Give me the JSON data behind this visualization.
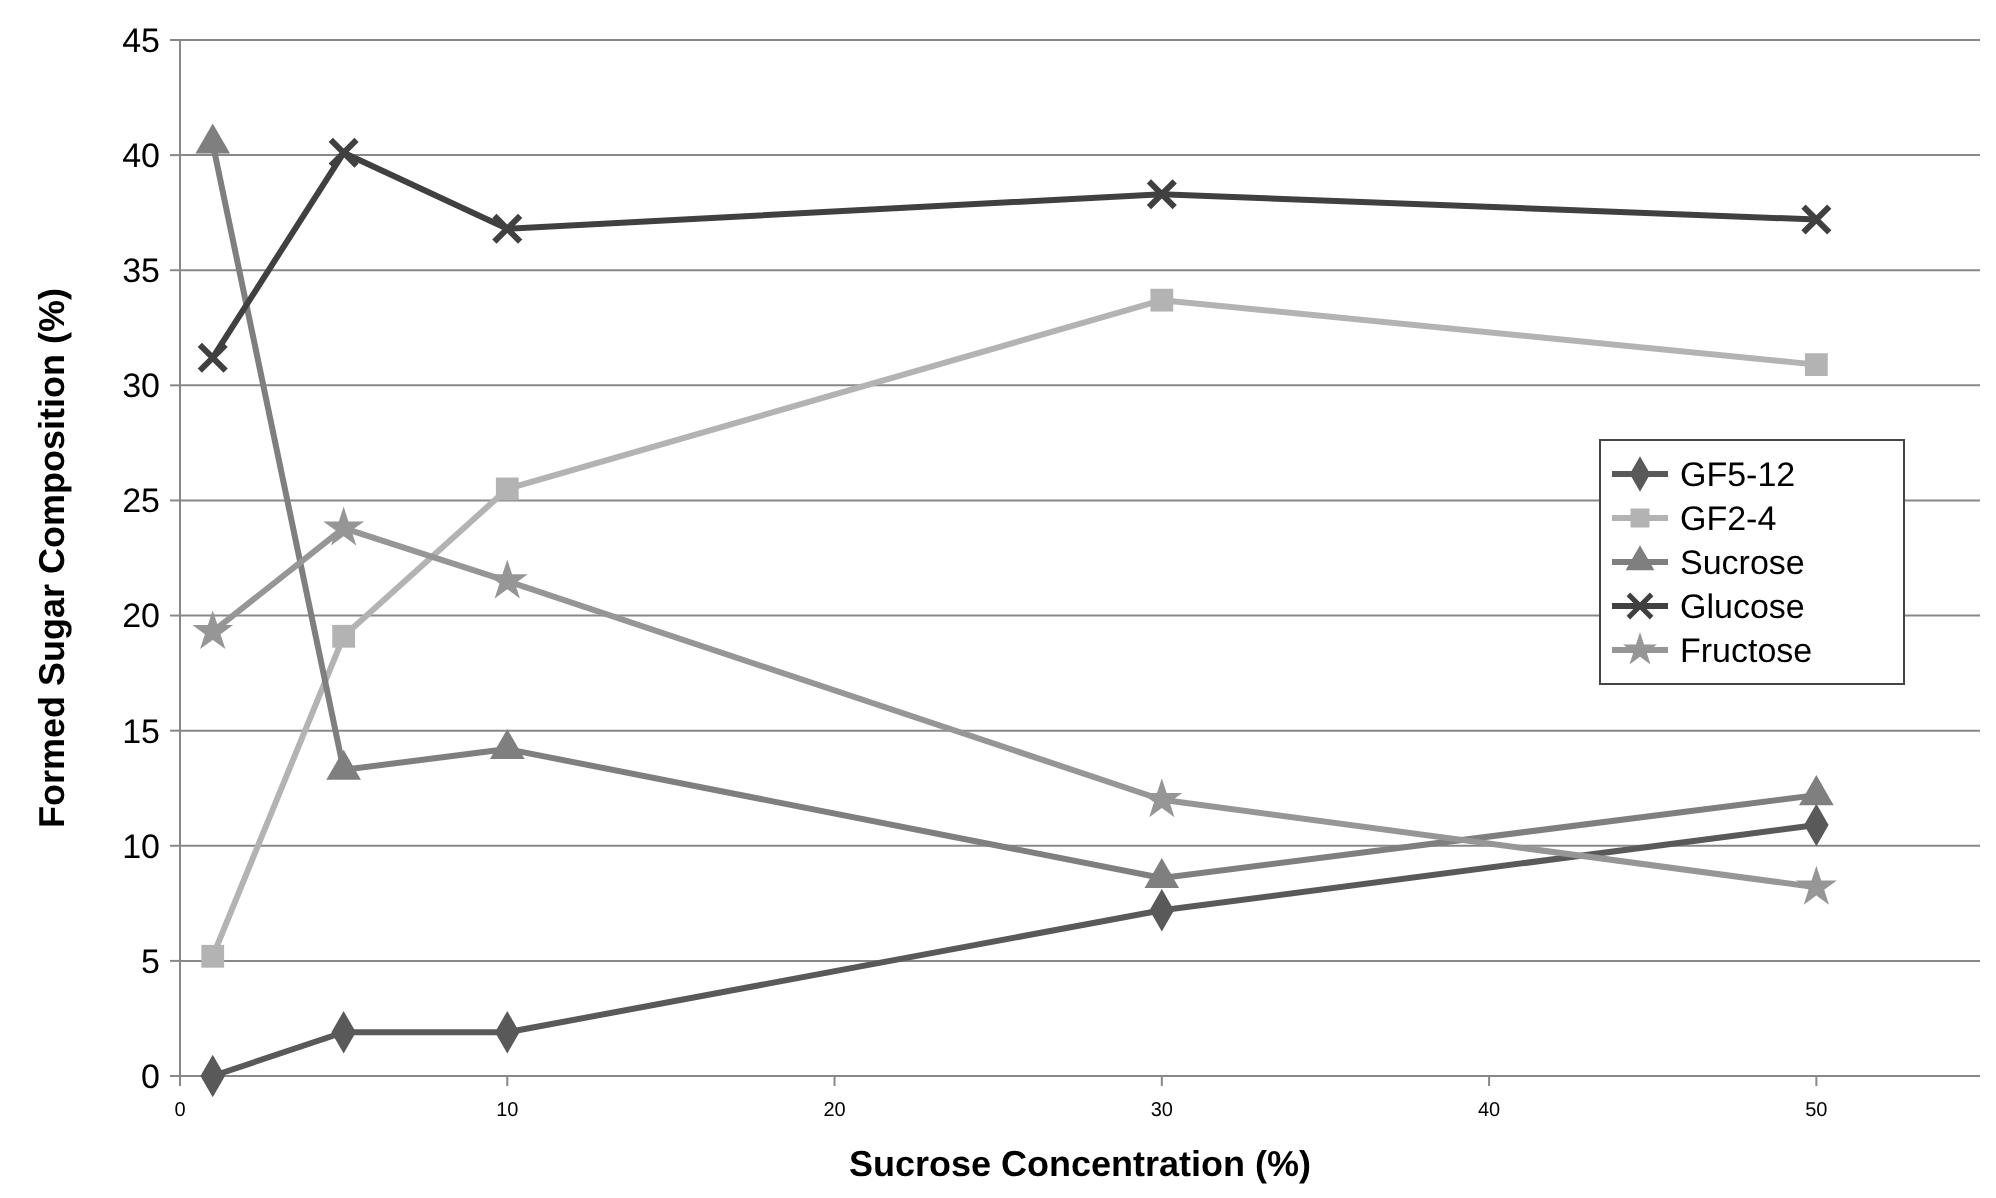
{
  "chart_data": {
    "type": "line",
    "xlabel": "Sucrose Concentration (%)",
    "ylabel": "Formed Sugar Composition (%)",
    "x": [
      1,
      5,
      10,
      30,
      50
    ],
    "series": [
      {
        "name": "GF5-12",
        "color": "#595959",
        "marker": "diamond",
        "values": [
          0,
          1.9,
          1.9,
          7.2,
          10.9
        ]
      },
      {
        "name": "GF2-4",
        "color": "#b3b3b3",
        "marker": "square",
        "values": [
          5.2,
          19.1,
          25.5,
          33.7,
          30.9
        ]
      },
      {
        "name": "Sucrose",
        "color": "#7f7f7f",
        "marker": "triangle",
        "values": [
          40.5,
          13.3,
          14.2,
          8.6,
          12.2
        ]
      },
      {
        "name": "Glucose",
        "color": "#404040",
        "marker": "cross",
        "values": [
          31.2,
          40.1,
          36.8,
          38.3,
          37.2
        ]
      },
      {
        "name": "Fructose",
        "color": "#969696",
        "marker": "star",
        "values": [
          19.3,
          23.8,
          21.5,
          12.0,
          8.2
        ]
      }
    ],
    "xlim": [
      0,
      55
    ],
    "xticks": [
      0,
      10,
      20,
      30,
      40,
      50
    ],
    "ylim": [
      0,
      45
    ],
    "yticks": [
      0,
      5,
      10,
      15,
      20,
      25,
      30,
      35,
      40,
      45
    ],
    "grid": "y",
    "legend": "right",
    "line_style": "solid"
  }
}
